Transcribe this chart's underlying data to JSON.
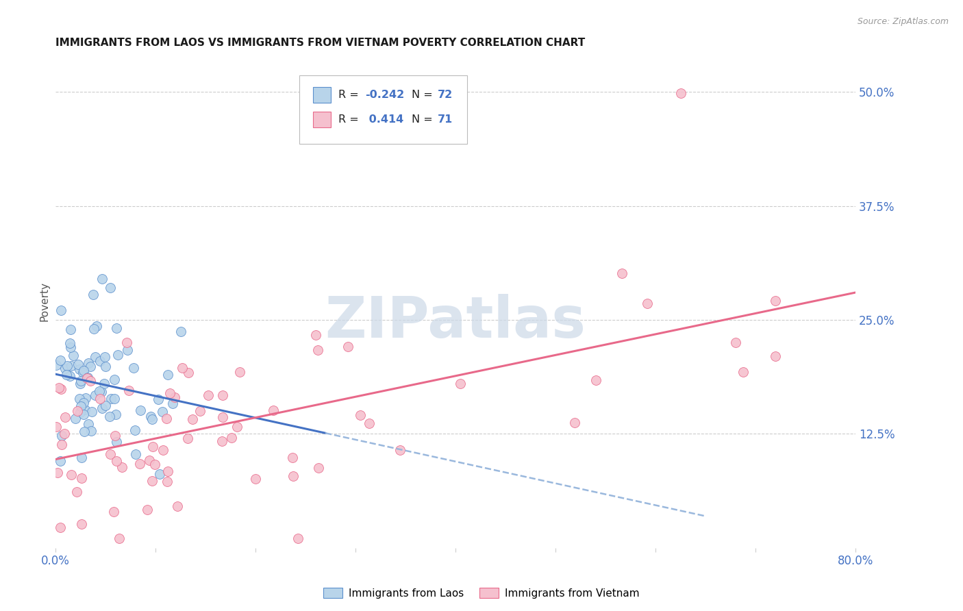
{
  "title": "IMMIGRANTS FROM LAOS VS IMMIGRANTS FROM VIETNAM POVERTY CORRELATION CHART",
  "source": "Source: ZipAtlas.com",
  "ylabel": "Poverty",
  "ytick_labels": [
    "12.5%",
    "25.0%",
    "37.5%",
    "50.0%"
  ],
  "ytick_values": [
    0.125,
    0.25,
    0.375,
    0.5
  ],
  "xlim": [
    0,
    0.8
  ],
  "ylim": [
    0.0,
    0.54
  ],
  "legend_label1": "Immigrants from Laos",
  "legend_label2": "Immigrants from Vietnam",
  "r1": -0.242,
  "n1": 72,
  "r2": 0.414,
  "n2": 71,
  "color_laos_fill": "#b8d4ea",
  "color_laos_edge": "#5b8fcc",
  "color_vietnam_fill": "#f5c0ce",
  "color_vietnam_edge": "#e8698a",
  "color_line_laos_solid": "#4472c4",
  "color_line_laos_dash": "#9ab8dd",
  "color_line_vietnam": "#e8698a",
  "watermark_color": "#ccd9e8",
  "background_color": "#ffffff",
  "title_color": "#1a1a1a",
  "axis_tick_color": "#4472c4",
  "grid_color": "#cccccc",
  "source_color": "#999999"
}
